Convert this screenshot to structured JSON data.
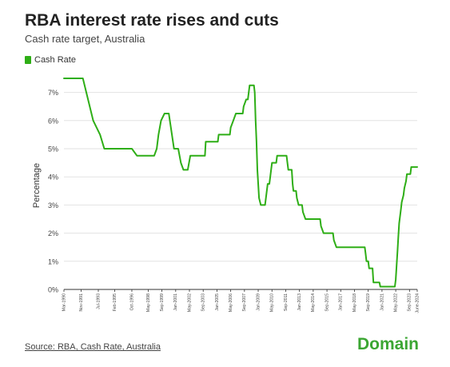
{
  "header": {
    "title": "RBA interest rate rises and cuts",
    "subtitle": "Cash rate target, Australia"
  },
  "legend": {
    "label": "Cash Rate"
  },
  "footer": {
    "source": "Source: RBA, Cash Rate, Australia",
    "brand": "Domain"
  },
  "colors": {
    "series": "#2eae16",
    "brand": "#3ba633",
    "grid": "#e2e2e2"
  },
  "chart_data": {
    "type": "line",
    "title": "RBA interest rate rises and cuts",
    "subtitle": "Cash rate target, Australia",
    "xlabel": "",
    "ylabel": "Percentage",
    "ylim": [
      0,
      7.5
    ],
    "xlim": [
      "1990-03",
      "2024-06"
    ],
    "y_ticks": [
      "0%",
      "1%",
      "2%",
      "3%",
      "4%",
      "5%",
      "6%",
      "7%"
    ],
    "x_ticks": [
      {
        "date": "1990-03",
        "label": "Mar-1990"
      },
      {
        "date": "1991-11",
        "label": "Nov-1991"
      },
      {
        "date": "1993-07",
        "label": "Jul-1993"
      },
      {
        "date": "1995-02",
        "label": "Feb-1995"
      },
      {
        "date": "1996-10",
        "label": "Oct-1996"
      },
      {
        "date": "1998-05",
        "label": "May-1998"
      },
      {
        "date": "1999-09",
        "label": "Sep-1999"
      },
      {
        "date": "2001-01",
        "label": "Jan-2001"
      },
      {
        "date": "2002-05",
        "label": "May-2002"
      },
      {
        "date": "2003-09",
        "label": "Sep-2003"
      },
      {
        "date": "2005-01",
        "label": "Jan-2005"
      },
      {
        "date": "2006-05",
        "label": "May-2006"
      },
      {
        "date": "2007-09",
        "label": "Sep-2007"
      },
      {
        "date": "2009-01",
        "label": "Jan-2009"
      },
      {
        "date": "2010-05",
        "label": "May-2010"
      },
      {
        "date": "2011-09",
        "label": "Sep-2011"
      },
      {
        "date": "2013-01",
        "label": "Jan-2013"
      },
      {
        "date": "2014-05",
        "label": "May-2014"
      },
      {
        "date": "2015-09",
        "label": "Sep-2015"
      },
      {
        "date": "2017-01",
        "label": "Jan-2017"
      },
      {
        "date": "2018-05",
        "label": "May-2018"
      },
      {
        "date": "2019-09",
        "label": "Sep-2019"
      },
      {
        "date": "2021-01",
        "label": "Jan-2021"
      },
      {
        "date": "2022-05",
        "label": "May-2022"
      },
      {
        "date": "2023-09",
        "label": "Sep-2023"
      },
      {
        "date": "2024-06",
        "label": "June-2024"
      }
    ],
    "grid": true,
    "legend": "top-left",
    "series": [
      {
        "name": "Cash Rate",
        "points": [
          {
            "x": "1990-03",
            "y": 7.5
          },
          {
            "x": "1992-01",
            "y": 7.5
          },
          {
            "x": "1992-05",
            "y": 7.0
          },
          {
            "x": "1993-01",
            "y": 6.0
          },
          {
            "x": "1993-09",
            "y": 5.5
          },
          {
            "x": "1994-02",
            "y": 5.0
          },
          {
            "x": "1996-10",
            "y": 5.0
          },
          {
            "x": "1997-04",
            "y": 4.75
          },
          {
            "x": "1998-12",
            "y": 4.75
          },
          {
            "x": "1999-03",
            "y": 5.0
          },
          {
            "x": "1999-05",
            "y": 5.5
          },
          {
            "x": "1999-08",
            "y": 6.0
          },
          {
            "x": "1999-12",
            "y": 6.25
          },
          {
            "x": "2000-05",
            "y": 6.25
          },
          {
            "x": "2000-11",
            "y": 5.0
          },
          {
            "x": "2001-04",
            "y": 5.0
          },
          {
            "x": "2001-07",
            "y": 4.5
          },
          {
            "x": "2001-10",
            "y": 4.25
          },
          {
            "x": "2002-03",
            "y": 4.25
          },
          {
            "x": "2002-06",
            "y": 4.75
          },
          {
            "x": "2003-11",
            "y": 4.75
          },
          {
            "x": "2003-12",
            "y": 5.25
          },
          {
            "x": "2005-02",
            "y": 5.25
          },
          {
            "x": "2005-03",
            "y": 5.5
          },
          {
            "x": "2006-04",
            "y": 5.5
          },
          {
            "x": "2006-05",
            "y": 5.75
          },
          {
            "x": "2006-08",
            "y": 6.0
          },
          {
            "x": "2006-11",
            "y": 6.25
          },
          {
            "x": "2007-07",
            "y": 6.25
          },
          {
            "x": "2007-08",
            "y": 6.5
          },
          {
            "x": "2007-11",
            "y": 6.75
          },
          {
            "x": "2008-01",
            "y": 6.75
          },
          {
            "x": "2008-02",
            "y": 7.0
          },
          {
            "x": "2008-03",
            "y": 7.25
          },
          {
            "x": "2008-08",
            "y": 7.25
          },
          {
            "x": "2008-09",
            "y": 7.0
          },
          {
            "x": "2008-10",
            "y": 6.0
          },
          {
            "x": "2008-11",
            "y": 5.25
          },
          {
            "x": "2008-12",
            "y": 4.25
          },
          {
            "x": "2009-02",
            "y": 3.25
          },
          {
            "x": "2009-04",
            "y": 3.0
          },
          {
            "x": "2009-09",
            "y": 3.0
          },
          {
            "x": "2009-10",
            "y": 3.25
          },
          {
            "x": "2009-11",
            "y": 3.5
          },
          {
            "x": "2009-12",
            "y": 3.75
          },
          {
            "x": "2010-02",
            "y": 3.75
          },
          {
            "x": "2010-03",
            "y": 4.0
          },
          {
            "x": "2010-04",
            "y": 4.25
          },
          {
            "x": "2010-05",
            "y": 4.5
          },
          {
            "x": "2010-10",
            "y": 4.5
          },
          {
            "x": "2010-11",
            "y": 4.75
          },
          {
            "x": "2011-10",
            "y": 4.75
          },
          {
            "x": "2011-11",
            "y": 4.5
          },
          {
            "x": "2011-12",
            "y": 4.25
          },
          {
            "x": "2012-04",
            "y": 4.25
          },
          {
            "x": "2012-05",
            "y": 3.75
          },
          {
            "x": "2012-06",
            "y": 3.5
          },
          {
            "x": "2012-09",
            "y": 3.5
          },
          {
            "x": "2012-10",
            "y": 3.25
          },
          {
            "x": "2012-12",
            "y": 3.0
          },
          {
            "x": "2013-04",
            "y": 3.0
          },
          {
            "x": "2013-05",
            "y": 2.75
          },
          {
            "x": "2013-08",
            "y": 2.5
          },
          {
            "x": "2015-01",
            "y": 2.5
          },
          {
            "x": "2015-02",
            "y": 2.25
          },
          {
            "x": "2015-05",
            "y": 2.0
          },
          {
            "x": "2016-04",
            "y": 2.0
          },
          {
            "x": "2016-05",
            "y": 1.75
          },
          {
            "x": "2016-08",
            "y": 1.5
          },
          {
            "x": "2019-05",
            "y": 1.5
          },
          {
            "x": "2019-06",
            "y": 1.25
          },
          {
            "x": "2019-07",
            "y": 1.0
          },
          {
            "x": "2019-09",
            "y": 1.0
          },
          {
            "x": "2019-10",
            "y": 0.75
          },
          {
            "x": "2020-02",
            "y": 0.75
          },
          {
            "x": "2020-03",
            "y": 0.25
          },
          {
            "x": "2020-10",
            "y": 0.25
          },
          {
            "x": "2020-11",
            "y": 0.1
          },
          {
            "x": "2022-04",
            "y": 0.1
          },
          {
            "x": "2022-05",
            "y": 0.35
          },
          {
            "x": "2022-06",
            "y": 0.85
          },
          {
            "x": "2022-07",
            "y": 1.35
          },
          {
            "x": "2022-08",
            "y": 1.85
          },
          {
            "x": "2022-09",
            "y": 2.35
          },
          {
            "x": "2022-10",
            "y": 2.6
          },
          {
            "x": "2022-11",
            "y": 2.85
          },
          {
            "x": "2022-12",
            "y": 3.1
          },
          {
            "x": "2023-02",
            "y": 3.35
          },
          {
            "x": "2023-03",
            "y": 3.6
          },
          {
            "x": "2023-05",
            "y": 3.85
          },
          {
            "x": "2023-06",
            "y": 4.1
          },
          {
            "x": "2023-10",
            "y": 4.1
          },
          {
            "x": "2023-11",
            "y": 4.35
          },
          {
            "x": "2024-06",
            "y": 4.35
          }
        ]
      }
    ]
  }
}
